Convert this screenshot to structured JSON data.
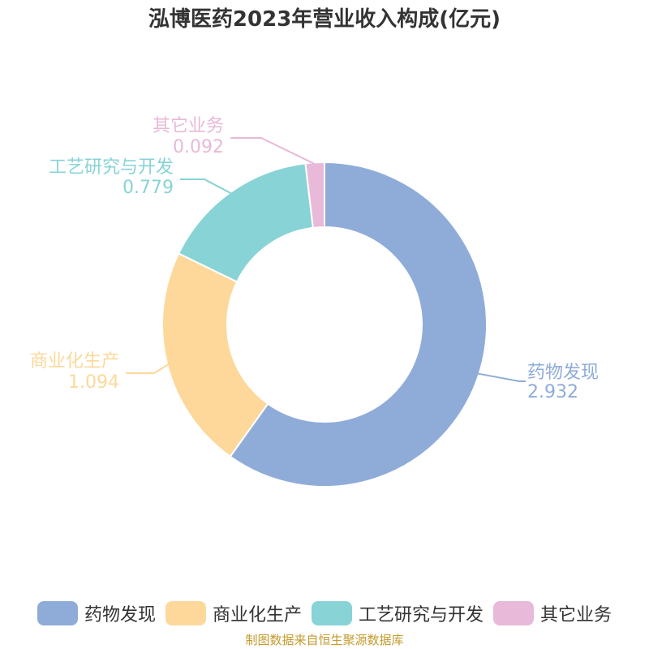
{
  "title": "泓博医药2023年营业收入构成(亿元)",
  "source_note": "制图数据来自恒生聚源数据库",
  "chart_data": {
    "type": "pie",
    "donut": true,
    "unit": "亿元",
    "legend_position": "bottom",
    "categories": [
      "药物发现",
      "商业化生产",
      "工艺研究与开发",
      "其它业务"
    ],
    "values": [
      2.932,
      1.094,
      0.779,
      0.092
    ],
    "value_labels": [
      "2.932",
      "1.094",
      "0.779",
      "0.092"
    ],
    "colors": [
      "#8facd9",
      "#fdd89a",
      "#88d3d6",
      "#e8b9d8"
    ]
  }
}
